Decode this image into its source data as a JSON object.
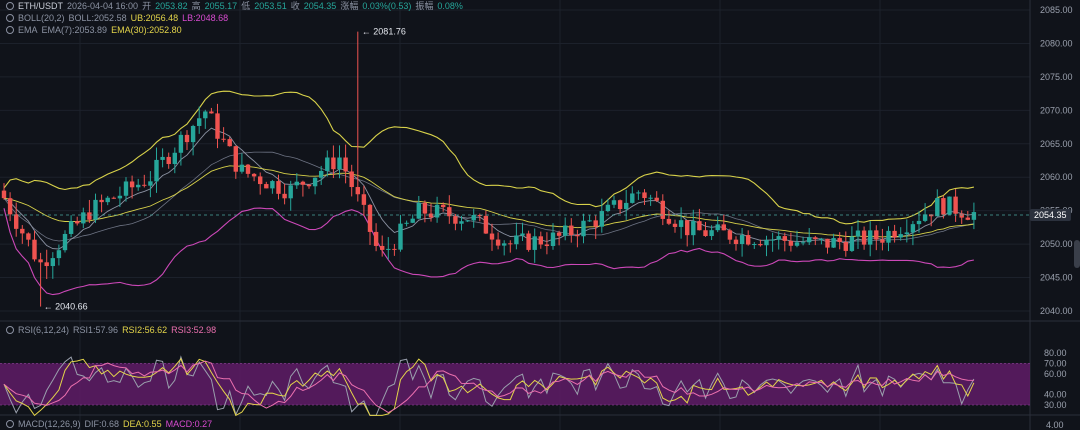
{
  "main_legend": {
    "symbol": "ETH/USDT",
    "datetime": "2026-04-04 16:00",
    "open_label": "开",
    "open": "2053.82",
    "high_label": "高",
    "high": "2055.17",
    "low_label": "低",
    "low": "2053.51",
    "close_label": "收",
    "close": "2054.35",
    "change_label": "涨幅",
    "change": "0.03%(0.53)",
    "amp_label": "振幅",
    "amp": "0.08%"
  },
  "boll_legend": {
    "name": "BOLL(20,2)",
    "mid": "BOLL:2052.58",
    "ub": "UB:2056.48",
    "lb": "LB:2048.68"
  },
  "ema_legend": {
    "name": "EMA",
    "ema7": "EMA(7):2053.89",
    "ema30": "EMA(30):2052.80"
  },
  "rsi_legend": {
    "name": "RSI(6,12,24)",
    "rsi1": "RSI1:57.96",
    "rsi2": "RSI2:56.62",
    "rsi3": "RSI3:52.98"
  },
  "macd_legend": {
    "name": "MACD(12,26,9)",
    "dif": "DIF:0.68",
    "dea": "DEA:0.55",
    "macd": "MACD:0.27"
  },
  "price_axis_ticks": [
    "2085.00",
    "2080.00",
    "2075.00",
    "2070.00",
    "2065.00",
    "2060.00",
    "2055.00",
    "2050.00",
    "2045.00",
    "2040.00"
  ],
  "rsi_axis_ticks": [
    "80.00",
    "70.00",
    "60.00",
    "40.00",
    "30.00"
  ],
  "macd_axis_tick": "4.00",
  "current_price": "2054.35",
  "annotations": {
    "high": "← 2081.76",
    "low": "← 2040.66"
  },
  "colors": {
    "up": "#26a69a",
    "down": "#ef5350",
    "boll_upper": "#d8d24a",
    "boll_lower": "#cc48b8",
    "ema_short": "#8c93a3",
    "ema_long": "#d8d24a",
    "rsi_band": "#5b1c63"
  }
}
